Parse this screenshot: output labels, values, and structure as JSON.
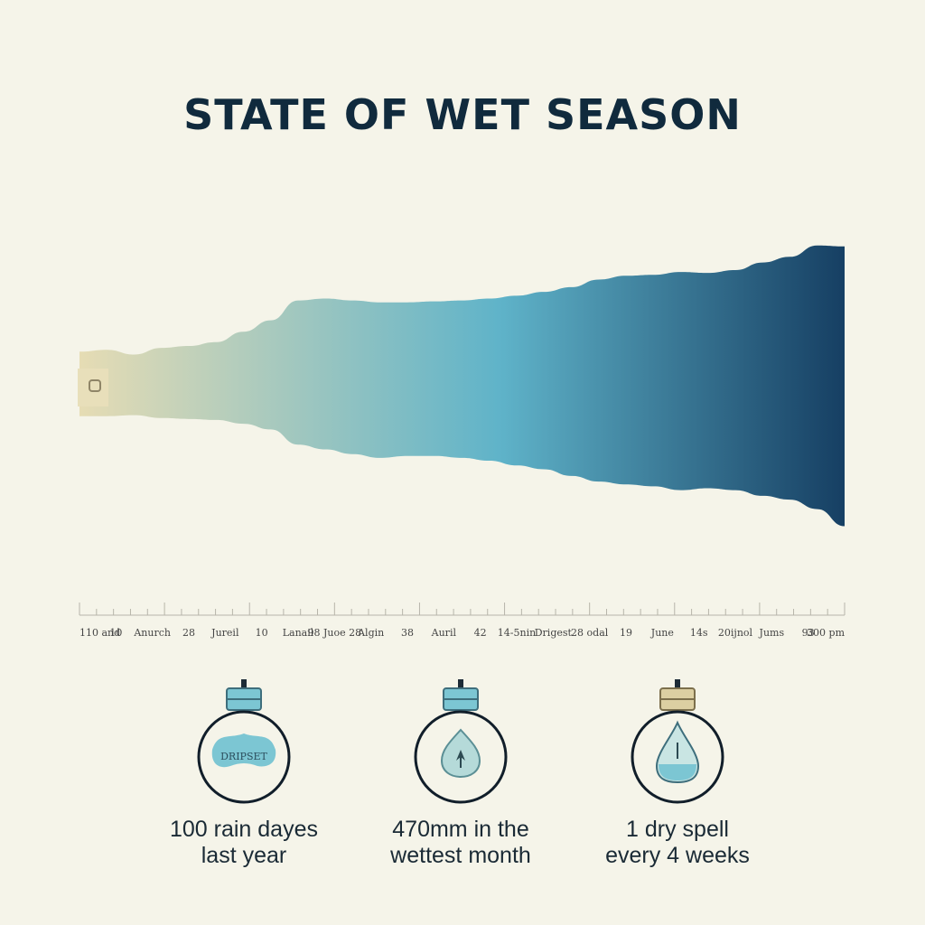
{
  "title": "STATE OF WET SEASON",
  "colors": {
    "background": "#f5f4e9",
    "title": "#102a3d",
    "gradient_start": "#e6dcb4",
    "gradient_mid": "#5fb3c9",
    "gradient_end": "#163f63",
    "icon_fill": "#7cc6d3",
    "icon_ring": "#111e2a"
  },
  "chart_data": {
    "type": "area",
    "title": "STATE OF WET SEASON",
    "xlabel": "",
    "ylabel": "",
    "tick_labels": [
      "110 and",
      "10",
      "Anurch",
      "28",
      "Jureil",
      "10",
      "Lanail",
      "98 Juoe 28",
      "Algin",
      "38",
      "Auril",
      "42",
      "14-5nin",
      "Drigest",
      "28 odal",
      "19",
      "June",
      "14s",
      "20ijnol",
      "Jums",
      "93",
      "300 pm"
    ],
    "x": [
      0,
      1,
      2,
      3,
      4,
      5,
      6,
      7,
      8,
      9,
      10,
      11,
      12,
      13,
      14,
      15,
      16,
      17,
      18,
      19,
      20,
      21,
      22,
      23,
      24,
      25,
      26,
      27,
      28
    ],
    "upper": [
      34,
      36,
      31,
      38,
      40,
      44,
      55,
      67,
      88,
      90,
      88,
      86,
      86,
      87,
      88,
      90,
      93,
      97,
      102,
      110,
      114,
      115,
      118,
      117,
      120,
      128,
      134,
      146,
      145
    ],
    "lower": [
      -34,
      -34,
      -33,
      -36,
      -37,
      -38,
      -42,
      -48,
      -64,
      -69,
      -74,
      -78,
      -76,
      -76,
      -78,
      -81,
      -86,
      -90,
      -97,
      -103,
      -106,
      -108,
      -112,
      -110,
      -112,
      -118,
      -122,
      -132,
      -150
    ],
    "grid": false,
    "legend": "none"
  },
  "stats": [
    {
      "icon": "pond-jar-icon",
      "icon_label": "DRIPSET",
      "line1": "100 rain dayes",
      "line2": "last year"
    },
    {
      "icon": "drop-leaf-jar-icon",
      "icon_label": "",
      "line1": "470mm in the",
      "line2": "wettest month"
    },
    {
      "icon": "droplet-jar-icon",
      "icon_label": "",
      "line1": "1 dry spell",
      "line2": "every 4 weeks"
    }
  ]
}
